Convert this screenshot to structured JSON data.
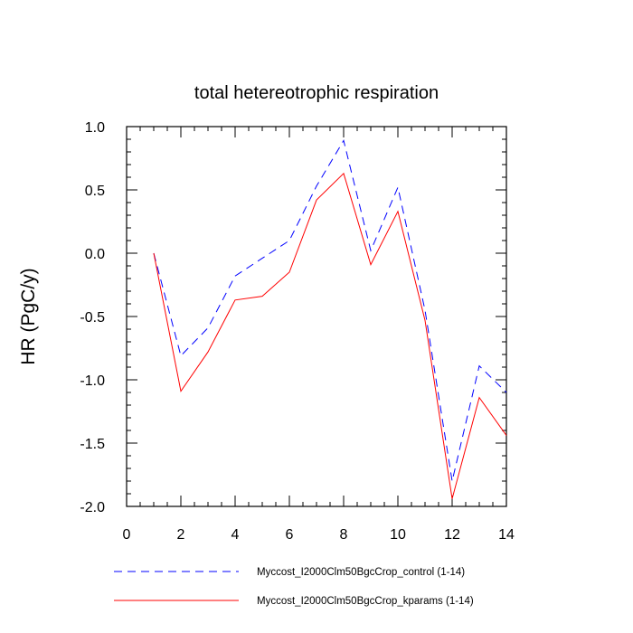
{
  "chart_data": {
    "type": "line",
    "title": "total hetereotrophic respiration",
    "xlabel": "",
    "ylabel": "HR  (PgC/y)",
    "xlim": [
      0,
      14
    ],
    "ylim": [
      -2.0,
      1.0
    ],
    "x_ticks": [
      0,
      2,
      4,
      6,
      8,
      10,
      12,
      14
    ],
    "x_tick_labels": [
      "0",
      "2",
      "4",
      "6",
      "8",
      "10",
      "12",
      "14"
    ],
    "y_ticks": [
      1.0,
      0.5,
      0.0,
      -0.5,
      -1.0,
      -1.5,
      -2.0
    ],
    "y_tick_labels": [
      "1.0",
      "0.5",
      "0.0",
      "-0.5",
      "-1.0",
      "-1.5",
      "-2.0"
    ],
    "grid": false,
    "legend_position": "bottom",
    "x": [
      1,
      2,
      3,
      4,
      5,
      6,
      7,
      8,
      9,
      10,
      11,
      12,
      13,
      14
    ],
    "series": [
      {
        "name": "Myccost_I2000Clm50BgcCrop_control (1-14)",
        "color": "#0000ff",
        "dash": "dashed",
        "values": [
          0.0,
          -0.81,
          -0.59,
          -0.18,
          -0.04,
          0.1,
          0.53,
          0.89,
          0.02,
          0.52,
          -0.45,
          -1.8,
          -0.89,
          -1.1
        ]
      },
      {
        "name": "Myccost_I2000Clm50BgcCrop_kparams (1-14)",
        "color": "#ff0000",
        "dash": "solid",
        "values": [
          0.0,
          -1.09,
          -0.78,
          -0.37,
          -0.34,
          -0.15,
          0.42,
          0.63,
          -0.09,
          0.33,
          -0.53,
          -1.94,
          -1.14,
          -1.44
        ]
      }
    ]
  }
}
